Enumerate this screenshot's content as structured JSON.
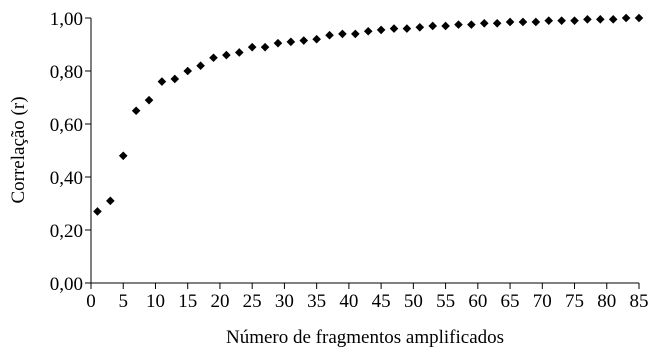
{
  "chart_data": {
    "type": "scatter",
    "title": "",
    "xlabel": "Número de fragmentos amplificados",
    "ylabel": "Correlação (r)",
    "xlim": [
      0,
      85
    ],
    "ylim": [
      0,
      1
    ],
    "grid": false,
    "x_ticks": [
      "0",
      "5",
      "10",
      "15",
      "20",
      "25",
      "30",
      "35",
      "40",
      "45",
      "50",
      "55",
      "60",
      "65",
      "70",
      "75",
      "80",
      "85"
    ],
    "y_ticks": [
      "0,00",
      "0,20",
      "0,40",
      "0,60",
      "0,80",
      "1,00"
    ],
    "marker_color": "#000000",
    "series": [
      {
        "x": [
          1,
          3,
          5,
          7,
          9,
          11,
          13,
          15,
          17,
          19,
          21,
          23,
          25,
          27,
          29,
          31,
          33,
          35,
          37,
          39,
          41,
          43,
          45,
          47,
          49,
          51,
          53,
          55,
          57,
          59,
          61,
          63,
          65,
          67,
          69,
          71,
          73,
          75,
          77,
          79,
          81,
          83,
          85
        ],
        "y": [
          0.27,
          0.31,
          0.48,
          0.65,
          0.69,
          0.76,
          0.77,
          0.8,
          0.82,
          0.85,
          0.86,
          0.87,
          0.89,
          0.89,
          0.905,
          0.91,
          0.915,
          0.92,
          0.935,
          0.94,
          0.94,
          0.95,
          0.955,
          0.96,
          0.96,
          0.965,
          0.97,
          0.97,
          0.975,
          0.975,
          0.98,
          0.98,
          0.985,
          0.985,
          0.985,
          0.99,
          0.99,
          0.99,
          0.995,
          0.995,
          0.995,
          1.0,
          1.0
        ]
      }
    ]
  }
}
